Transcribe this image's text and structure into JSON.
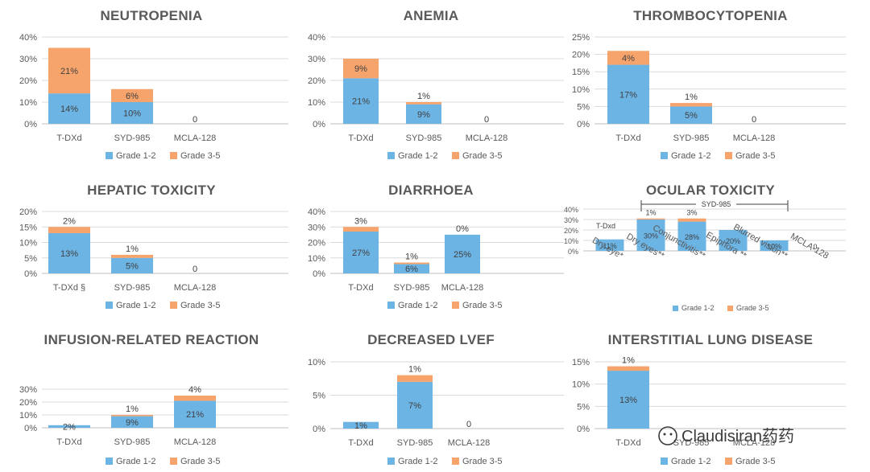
{
  "colors": {
    "grade_low": "#6cb4e4",
    "grade_high": "#f6a46c"
  },
  "watermark": "Claudisiran药药",
  "chart_data": [
    {
      "type": "bar",
      "stacked": true,
      "title": "NEUTROPENIA",
      "categories": [
        "T-DXd",
        "SYD-985",
        "MCLA-128"
      ],
      "ylim": [
        0,
        40
      ],
      "yticks": [
        0,
        10,
        20,
        30,
        40
      ],
      "tick_labels": [
        "0%",
        "10%",
        "20%",
        "30%",
        "40%"
      ],
      "series": [
        {
          "name": "Grade 1-2",
          "values": [
            14,
            10,
            0
          ],
          "labels": [
            "14%",
            "10%",
            "0"
          ]
        },
        {
          "name": "Grade 3-5",
          "values": [
            21,
            6,
            0
          ],
          "labels": [
            "21%",
            "6%",
            ""
          ]
        }
      ],
      "legend": "bottom"
    },
    {
      "type": "bar",
      "stacked": true,
      "title": "ANEMIA",
      "categories": [
        "T-DXd",
        "SYD-985",
        "MCLA-128"
      ],
      "ylim": [
        0,
        40
      ],
      "yticks": [
        0,
        10,
        20,
        30,
        40
      ],
      "tick_labels": [
        "0%",
        "10%",
        "20%",
        "30%",
        "40%"
      ],
      "series": [
        {
          "name": "Grade 1-2",
          "values": [
            21,
            9,
            0
          ],
          "labels": [
            "21%",
            "9%",
            "0"
          ]
        },
        {
          "name": "Grade 3-5",
          "values": [
            9,
            1,
            0
          ],
          "labels": [
            "9%",
            "1%",
            ""
          ]
        }
      ],
      "legend": "bottom"
    },
    {
      "type": "bar",
      "stacked": true,
      "title": "THROMBOCYTOPENIA",
      "categories": [
        "T-DXd",
        "SYD-985",
        "MCLA-128"
      ],
      "ylim": [
        0,
        25
      ],
      "yticks": [
        0,
        5,
        10,
        15,
        20,
        25
      ],
      "tick_labels": [
        "0%",
        "5%",
        "10%",
        "15%",
        "20%",
        "25%"
      ],
      "series": [
        {
          "name": "Grade 1-2",
          "values": [
            17,
            5,
            0
          ],
          "labels": [
            "17%",
            "5%",
            "0"
          ]
        },
        {
          "name": "Grade 3-5",
          "values": [
            4,
            1,
            0
          ],
          "labels": [
            "4%",
            "1%",
            ""
          ]
        }
      ],
      "legend": "bottom"
    },
    {
      "type": "bar",
      "stacked": true,
      "title": "HEPATIC TOXICITY",
      "categories": [
        "T-DXd §",
        "SYD-985",
        "MCLA-128"
      ],
      "ylim": [
        0,
        20
      ],
      "yticks": [
        0,
        5,
        10,
        15,
        20
      ],
      "tick_labels": [
        "0%",
        "5%",
        "10%",
        "15%",
        "20%"
      ],
      "series": [
        {
          "name": "Grade 1-2",
          "values": [
            13,
            5,
            0
          ],
          "labels": [
            "13%",
            "5%",
            "0"
          ]
        },
        {
          "name": "Grade 3-5",
          "values": [
            2,
            1,
            0
          ],
          "labels": [
            "2%",
            "1%",
            ""
          ]
        }
      ],
      "legend": "bottom"
    },
    {
      "type": "bar",
      "stacked": true,
      "title": "DIARRHOEA",
      "categories": [
        "T-DXd",
        "SYD-985",
        "MCLA-128"
      ],
      "ylim": [
        0,
        40
      ],
      "yticks": [
        0,
        10,
        20,
        30,
        40
      ],
      "tick_labels": [
        "0%",
        "10%",
        "20%",
        "30%",
        "40%"
      ],
      "series": [
        {
          "name": "Grade 1-2",
          "values": [
            27,
            6,
            25
          ],
          "labels": [
            "27%",
            "6%",
            "25%"
          ]
        },
        {
          "name": "Grade 3-5",
          "values": [
            3,
            1,
            0
          ],
          "labels": [
            "3%",
            "1%",
            "0%"
          ]
        }
      ],
      "legend": "bottom"
    },
    {
      "type": "bar",
      "stacked": true,
      "title": "OCULAR TOXICITY",
      "categories": [
        "Dry eye*",
        "Dry eyes**",
        "Conjunctivitis**",
        "Epiphora **",
        "Blurred vision**",
        "MCLA-128"
      ],
      "ylim": [
        0,
        40
      ],
      "yticks": [
        0,
        10,
        20,
        30,
        40
      ],
      "tick_labels": [
        "0%",
        "10%",
        "20%",
        "30%",
        "40%"
      ],
      "series": [
        {
          "name": "Grade 1-2",
          "values": [
            11,
            30,
            28,
            20,
            10,
            0
          ],
          "labels": [
            "11%",
            "30%",
            "28%",
            "20%",
            "10%",
            "0"
          ]
        },
        {
          "name": "Grade 3-5",
          "values": [
            0,
            1,
            3,
            0,
            0,
            0
          ],
          "labels": [
            "",
            "1%",
            "3%",
            "",
            "",
            ""
          ]
        }
      ],
      "annotations": [
        "T-Dxd",
        "SYD-985"
      ],
      "legend": "bottom"
    },
    {
      "type": "bar",
      "stacked": true,
      "title": "INFUSION-RELATED REACTION",
      "categories": [
        "T-DXd",
        "SYD-985",
        "MCLA-128"
      ],
      "ylim": [
        0,
        30
      ],
      "yticks": [
        0,
        10,
        20,
        30
      ],
      "tick_labels": [
        "0%",
        "10%",
        "20%",
        "30%"
      ],
      "series": [
        {
          "name": "Grade 1-2",
          "values": [
            2,
            9,
            21
          ],
          "labels": [
            "2%",
            "9%",
            "21%"
          ]
        },
        {
          "name": "Grade 3-5",
          "values": [
            0,
            1,
            4
          ],
          "labels": [
            "",
            "1%",
            "4%"
          ]
        }
      ],
      "legend": "bottom"
    },
    {
      "type": "bar",
      "stacked": true,
      "title": "DECREASED LVEF",
      "categories": [
        "T-DXd",
        "SYD-985",
        "MCLA-128"
      ],
      "ylim": [
        0,
        10
      ],
      "yticks": [
        0,
        5,
        10
      ],
      "tick_labels": [
        "0%",
        "5%",
        "10%"
      ],
      "series": [
        {
          "name": "Grade 1-2",
          "values": [
            1,
            7,
            0
          ],
          "labels": [
            "1%",
            "7%",
            "0"
          ]
        },
        {
          "name": "Grade 3-5",
          "values": [
            0,
            1,
            0
          ],
          "labels": [
            "",
            "1%",
            ""
          ]
        }
      ],
      "legend": "bottom"
    },
    {
      "type": "bar",
      "stacked": true,
      "title": "INTERSTITIAL LUNG DISEASE",
      "categories": [
        "T-DXd",
        "SYD-985",
        "MCLA-128"
      ],
      "ylim": [
        0,
        15
      ],
      "yticks": [
        0,
        5,
        10,
        15
      ],
      "tick_labels": [
        "0%",
        "5%",
        "10%",
        "15%"
      ],
      "series": [
        {
          "name": "Grade 1-2",
          "values": [
            13,
            0,
            0
          ],
          "labels": [
            "13%",
            "",
            ""
          ]
        },
        {
          "name": "Grade 3-5",
          "values": [
            1,
            0,
            0
          ],
          "labels": [
            "1%",
            "",
            ""
          ]
        }
      ],
      "legend": "bottom"
    }
  ]
}
